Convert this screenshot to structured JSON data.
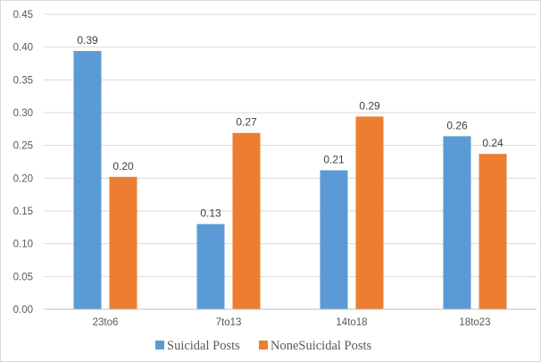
{
  "chart_data": {
    "type": "bar",
    "categories": [
      "23to6",
      "7to13",
      "14to18",
      "18to23"
    ],
    "series": [
      {
        "name": "Suicidal Posts",
        "values": [
          0.39,
          0.13,
          0.21,
          0.26
        ],
        "labels": [
          "0.39",
          "0.13",
          "0.21",
          "0.26"
        ],
        "color": "#5b9bd5"
      },
      {
        "name": "NoneSuicidal Posts",
        "values": [
          0.2,
          0.27,
          0.29,
          0.24
        ],
        "labels": [
          "0.20",
          "0.27",
          "0.29",
          "0.24"
        ],
        "color": "#ed7d31"
      }
    ],
    "bar_values_precise": [
      [
        0.394,
        0.13,
        0.212,
        0.264
      ],
      [
        0.202,
        0.269,
        0.294,
        0.237
      ]
    ],
    "ylim": [
      0,
      0.45
    ],
    "yticks": [
      "0.00",
      "0.05",
      "0.10",
      "0.15",
      "0.20",
      "0.25",
      "0.30",
      "0.35",
      "0.40",
      "0.45"
    ],
    "grid": true,
    "legend_position": "bottom",
    "title": "",
    "xlabel": "",
    "ylabel": ""
  }
}
